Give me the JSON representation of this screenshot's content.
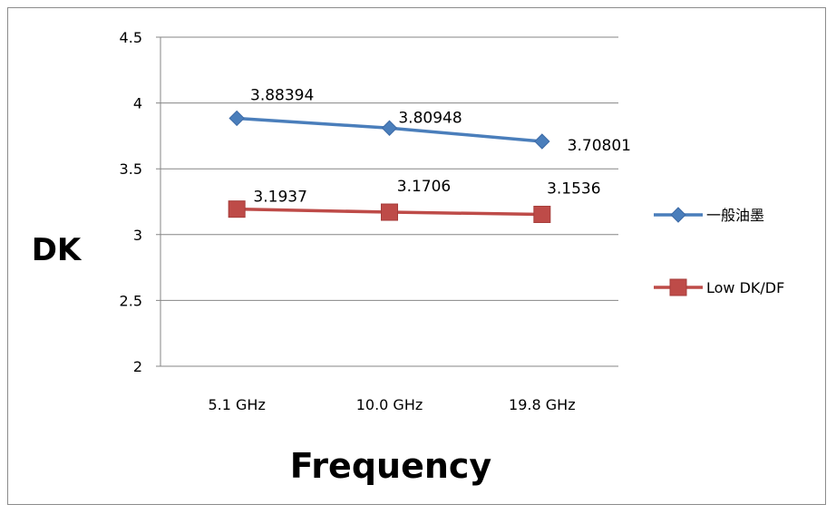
{
  "chart_data": {
    "type": "line",
    "categories": [
      "5.1 GHz",
      "10.0 GHz",
      "19.8 GHz"
    ],
    "series": [
      {
        "name": "一般油墨",
        "values": [
          3.88394,
          3.80948,
          3.70801
        ],
        "labels": [
          "3.88394",
          "3.80948",
          "3.70801"
        ],
        "color": "#4a7ebb",
        "marker": "diamond"
      },
      {
        "name": "Low DK/DF",
        "values": [
          3.1937,
          3.1706,
          3.1536
        ],
        "labels": [
          "3.1937",
          "3.1706",
          "3.1536"
        ],
        "color": "#be4b48",
        "marker": "square"
      }
    ],
    "xlabel": "Frequency",
    "ylabel": "DK",
    "ylim": [
      2,
      4.5
    ],
    "yticks": [
      "2",
      "2.5",
      "3",
      "3.5",
      "4",
      "4.5"
    ],
    "grid": true,
    "legend": "right"
  }
}
